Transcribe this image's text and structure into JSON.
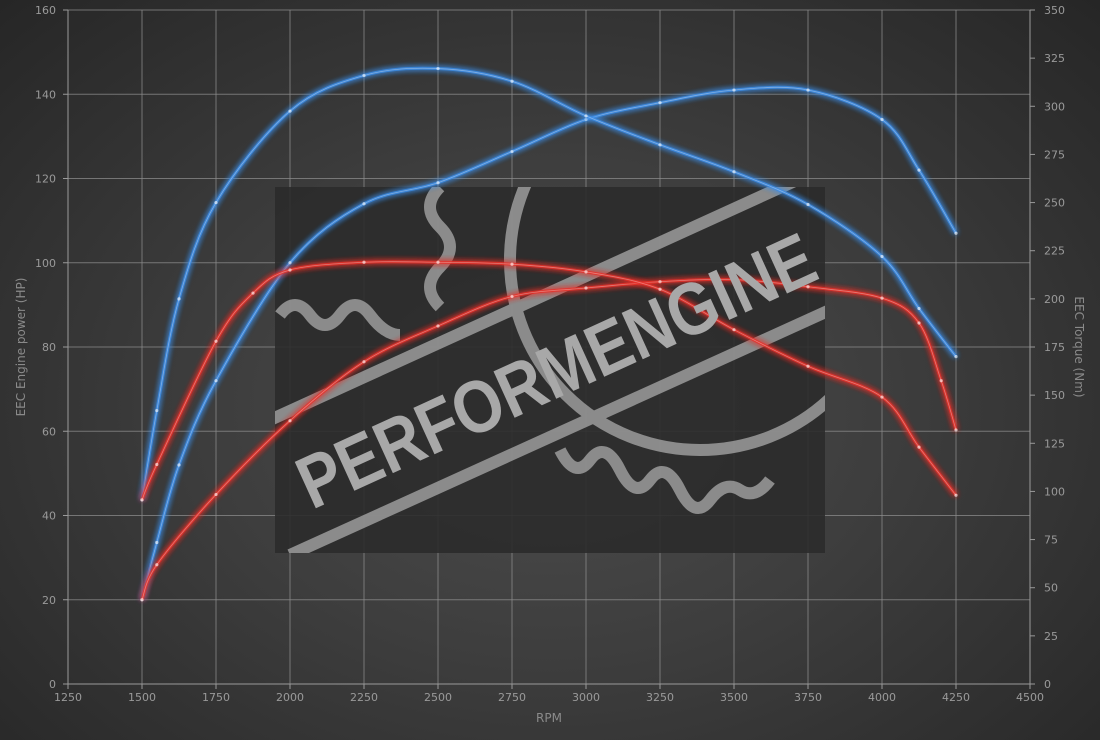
{
  "watermark": {
    "text": "PERFORMENGINE"
  },
  "chart_data": {
    "type": "line",
    "title": "",
    "xlabel": "RPM",
    "ylabel_left": "EEC Engine power (HP)",
    "ylabel_right": "EEC Torque (Nm)",
    "xlim": [
      1250,
      4500
    ],
    "ylim_left": [
      0,
      160
    ],
    "ylim_right": [
      0,
      350
    ],
    "x_ticks": [
      "1250",
      "1500",
      "1750",
      "2000",
      "2250",
      "2500",
      "2750",
      "3000",
      "3250",
      "3500",
      "3750",
      "4000",
      "4250",
      "4500"
    ],
    "y_left_ticks": [
      "0",
      "20",
      "40",
      "60",
      "80",
      "100",
      "120",
      "140",
      "160"
    ],
    "y_right_ticks": [
      "0",
      "25",
      "50",
      "75",
      "100",
      "125",
      "150",
      "175",
      "200",
      "225",
      "250",
      "275",
      "300",
      "325",
      "350"
    ],
    "grid": true,
    "colors": {
      "tuned": "#3d8ee8",
      "stock": "#e8302c"
    },
    "series": [
      {
        "id": "tuned-power",
        "axis": "left",
        "color": "#3d8ee8",
        "x": [
          1500,
          1550,
          1625,
          1750,
          2000,
          2250,
          2500,
          2750,
          3000,
          3250,
          3500,
          3750,
          4000,
          4125,
          4250
        ],
        "y": [
          20,
          33.6,
          52,
          72,
          100,
          114,
          119,
          126.4,
          134,
          138,
          141,
          141,
          134,
          122,
          107
        ]
      },
      {
        "id": "tuned-torque",
        "axis": "right",
        "color": "#3d8ee8",
        "x": [
          1500,
          1550,
          1625,
          1750,
          2000,
          2250,
          2500,
          2750,
          3000,
          3250,
          3500,
          3750,
          4000,
          4125,
          4250
        ],
        "y": [
          95.6,
          142,
          200,
          250,
          297.5,
          316,
          319.6,
          313,
          295,
          280,
          266,
          249,
          222,
          195,
          170
        ]
      },
      {
        "id": "stock-power",
        "axis": "left",
        "color": "#e8302c",
        "x": [
          1500,
          1550,
          1750,
          2000,
          2250,
          2500,
          2750,
          3000,
          3250,
          3500,
          3750,
          4000,
          4125,
          4200,
          4250
        ],
        "y": [
          20,
          28.3,
          45,
          62.5,
          76.5,
          85,
          92,
          94,
          95.5,
          96,
          94.3,
          91.6,
          85.7,
          72,
          60.3
        ]
      },
      {
        "id": "stock-torque",
        "axis": "right",
        "color": "#e8302c",
        "x": [
          1500,
          1550,
          1750,
          1875,
          2000,
          2250,
          2500,
          2750,
          3000,
          3250,
          3500,
          3750,
          4000,
          4125,
          4250
        ],
        "y": [
          95.6,
          114,
          178,
          203,
          215,
          219,
          219,
          218,
          214,
          205,
          184,
          165,
          149,
          123,
          98
        ]
      }
    ]
  }
}
